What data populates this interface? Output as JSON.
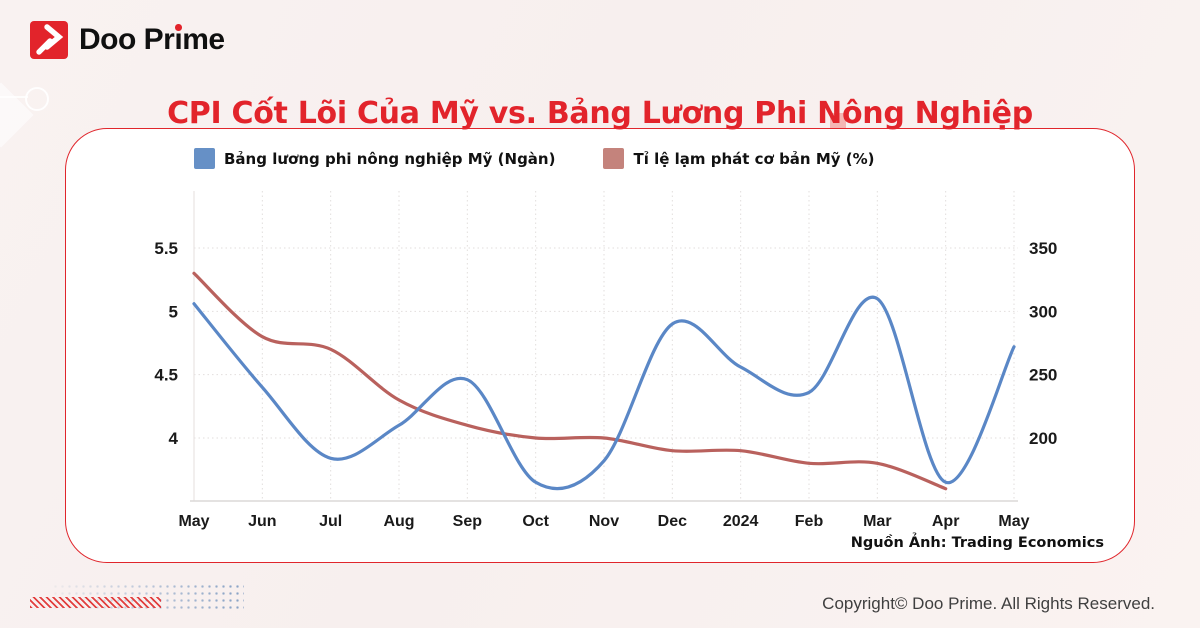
{
  "brand": {
    "name": "Doo Prime"
  },
  "title": "CPI Cốt Lõi Của Mỹ vs. Bảng Lương Phi Nông Nghiệp",
  "card": {
    "source_note": "Nguồn Ảnh: Trading Economics"
  },
  "footer": {
    "copyright": "Copyright© Doo Prime. All Rights Reserved."
  },
  "chart_data": {
    "type": "line",
    "title": "CPI Cốt Lõi Của Mỹ vs. Bảng Lương Phi Nông Nghiệp",
    "categories": [
      "May",
      "Jun",
      "Jul",
      "Aug",
      "Sep",
      "Oct",
      "Nov",
      "Dec",
      "2024",
      "Feb",
      "Mar",
      "Apr",
      "May"
    ],
    "series": [
      {
        "name": "Bảng lương phi nông nghiệp Mỹ (Ngàn)",
        "axis": "right",
        "color": "#5a87c6",
        "legend_color": "#6690c6",
        "values": [
          306,
          240,
          184,
          210,
          246,
          165,
          182,
          290,
          256,
          236,
          310,
          165,
          272
        ]
      },
      {
        "name": "Tỉ lệ lạm phát cơ bản Mỹ (%)",
        "axis": "left",
        "color": "#b9615d",
        "legend_color": "#c4837c",
        "values": [
          5.3,
          4.8,
          4.7,
          4.3,
          4.1,
          4.0,
          4.0,
          3.9,
          3.9,
          3.8,
          3.8,
          3.6
        ]
      }
    ],
    "left_axis": {
      "ticks": [
        5.5,
        5,
        4.5,
        4
      ],
      "min": 3.5,
      "max": 5.95
    },
    "right_axis": {
      "ticks": [
        350,
        300,
        250,
        200
      ],
      "min": 150,
      "max": 395
    },
    "grid": "dotted",
    "legend_position": "top-left",
    "smoothing": "spline"
  }
}
